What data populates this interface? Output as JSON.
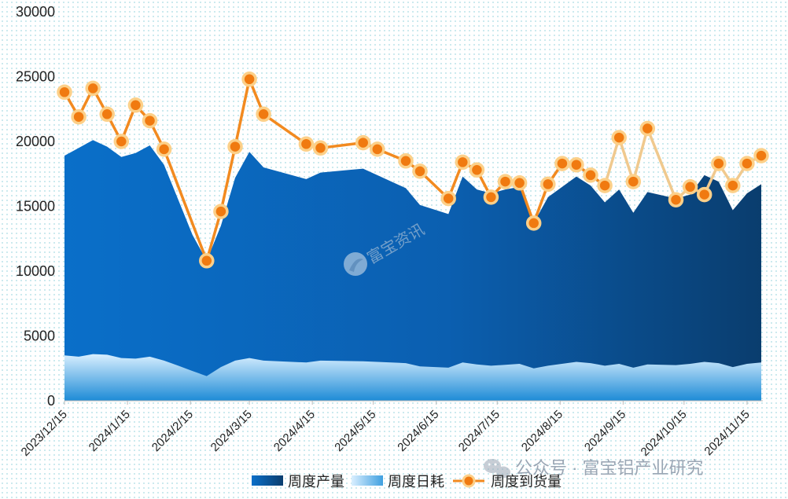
{
  "chart_data": {
    "type": "area",
    "ylim": [
      0,
      30000
    ],
    "yticks": [
      0,
      5000,
      10000,
      15000,
      20000,
      25000,
      30000
    ],
    "xtick_labels": [
      "2023/12/15",
      "2024/1/15",
      "2024/2/15",
      "2024/3/15",
      "2024/4/15",
      "2024/5/15",
      "2024/6/15",
      "2024/7/15",
      "2024/8/15",
      "2024/9/15",
      "2024/10/15",
      "2024/11/15"
    ],
    "grid": true,
    "legend_position": "bottom",
    "series": [
      {
        "name": "周度产量",
        "kind": "area",
        "color": "#0a6cc4",
        "points": [
          [
            "2023-12-15",
            18900
          ],
          [
            "2023-12-22",
            19500
          ],
          [
            "2023-12-29",
            20100
          ],
          [
            "2024-01-05",
            19600
          ],
          [
            "2024-01-12",
            18800
          ],
          [
            "2024-01-19",
            19100
          ],
          [
            "2024-01-26",
            19700
          ],
          [
            "2024-02-02",
            18200
          ],
          [
            "2024-02-09",
            15500
          ],
          [
            "2024-02-16",
            12800
          ],
          [
            "2024-02-23",
            10800
          ],
          [
            "2024-03-01",
            13500
          ],
          [
            "2024-03-08",
            17200
          ],
          [
            "2024-03-15",
            19200
          ],
          [
            "2024-03-22",
            18000
          ],
          [
            "2024-04-12",
            17100
          ],
          [
            "2024-04-19",
            17600
          ],
          [
            "2024-05-03",
            17800
          ],
          [
            "2024-05-10",
            17900
          ],
          [
            "2024-05-17",
            17400
          ],
          [
            "2024-05-31",
            16400
          ],
          [
            "2024-06-07",
            15100
          ],
          [
            "2024-06-21",
            14400
          ],
          [
            "2024-06-28",
            17300
          ],
          [
            "2024-07-05",
            16300
          ],
          [
            "2024-07-12",
            16000
          ],
          [
            "2024-07-19",
            16300
          ],
          [
            "2024-07-26",
            16500
          ],
          [
            "2024-08-02",
            13700
          ],
          [
            "2024-08-09",
            15700
          ],
          [
            "2024-08-16",
            16500
          ],
          [
            "2024-08-23",
            17300
          ],
          [
            "2024-08-30",
            16600
          ],
          [
            "2024-09-06",
            15300
          ],
          [
            "2024-09-13",
            16300
          ],
          [
            "2024-09-20",
            14500
          ],
          [
            "2024-09-27",
            16100
          ],
          [
            "2024-10-11",
            15600
          ],
          [
            "2024-10-18",
            15900
          ],
          [
            "2024-10-25",
            17400
          ],
          [
            "2024-11-01",
            16900
          ],
          [
            "2024-11-08",
            14700
          ],
          [
            "2024-11-15",
            16000
          ],
          [
            "2024-11-22",
            16700
          ]
        ]
      },
      {
        "name": "周度日耗",
        "kind": "area",
        "color": "#7cc3f2",
        "points": [
          [
            "2023-12-15",
            3500
          ],
          [
            "2023-12-22",
            3400
          ],
          [
            "2023-12-29",
            3600
          ],
          [
            "2024-01-05",
            3550
          ],
          [
            "2024-01-12",
            3300
          ],
          [
            "2024-01-19",
            3250
          ],
          [
            "2024-01-26",
            3400
          ],
          [
            "2024-02-02",
            3100
          ],
          [
            "2024-02-09",
            2700
          ],
          [
            "2024-02-16",
            2300
          ],
          [
            "2024-02-23",
            1900
          ],
          [
            "2024-03-01",
            2600
          ],
          [
            "2024-03-08",
            3100
          ],
          [
            "2024-03-15",
            3300
          ],
          [
            "2024-03-22",
            3100
          ],
          [
            "2024-04-12",
            2950
          ],
          [
            "2024-04-19",
            3100
          ],
          [
            "2024-05-10",
            3050
          ],
          [
            "2024-05-31",
            2900
          ],
          [
            "2024-06-07",
            2650
          ],
          [
            "2024-06-21",
            2550
          ],
          [
            "2024-06-28",
            2950
          ],
          [
            "2024-07-05",
            2800
          ],
          [
            "2024-07-12",
            2700
          ],
          [
            "2024-07-26",
            2850
          ],
          [
            "2024-08-02",
            2500
          ],
          [
            "2024-08-09",
            2700
          ],
          [
            "2024-08-23",
            3000
          ],
          [
            "2024-08-30",
            2900
          ],
          [
            "2024-09-06",
            2700
          ],
          [
            "2024-09-13",
            2850
          ],
          [
            "2024-09-20",
            2550
          ],
          [
            "2024-09-27",
            2800
          ],
          [
            "2024-10-11",
            2750
          ],
          [
            "2024-10-18",
            2850
          ],
          [
            "2024-10-25",
            3000
          ],
          [
            "2024-11-01",
            2900
          ],
          [
            "2024-11-08",
            2600
          ],
          [
            "2024-11-15",
            2850
          ],
          [
            "2024-11-22",
            2950
          ]
        ]
      },
      {
        "name": "周度到货量",
        "kind": "line",
        "color": "#f28a20",
        "color_late": "#f0c98e",
        "points": [
          [
            "2023-12-15",
            23800
          ],
          [
            "2023-12-22",
            21900
          ],
          [
            "2023-12-29",
            24100
          ],
          [
            "2024-01-05",
            22100
          ],
          [
            "2024-01-12",
            20000
          ],
          [
            "2024-01-19",
            22800
          ],
          [
            "2024-01-26",
            21600
          ],
          [
            "2024-02-02",
            19400
          ],
          [
            "2024-02-23",
            10800
          ],
          [
            "2024-03-01",
            14600
          ],
          [
            "2024-03-08",
            19600
          ],
          [
            "2024-03-15",
            24800
          ],
          [
            "2024-03-22",
            22100
          ],
          [
            "2024-04-12",
            19800
          ],
          [
            "2024-04-19",
            19500
          ],
          [
            "2024-05-10",
            19900
          ],
          [
            "2024-05-17",
            19400
          ],
          [
            "2024-05-31",
            18500
          ],
          [
            "2024-06-07",
            17700
          ],
          [
            "2024-06-21",
            15600
          ],
          [
            "2024-06-28",
            18400
          ],
          [
            "2024-07-05",
            17800
          ],
          [
            "2024-07-12",
            15700
          ],
          [
            "2024-07-19",
            16900
          ],
          [
            "2024-07-26",
            16800
          ],
          [
            "2024-08-02",
            13700
          ],
          [
            "2024-08-09",
            16700
          ],
          [
            "2024-08-16",
            18300
          ],
          [
            "2024-08-23",
            18200
          ],
          [
            "2024-08-30",
            17400
          ],
          [
            "2024-09-06",
            16600
          ],
          [
            "2024-09-13",
            20300
          ],
          [
            "2024-09-20",
            16900
          ],
          [
            "2024-09-27",
            21000
          ],
          [
            "2024-10-11",
            15500
          ],
          [
            "2024-10-18",
            16500
          ],
          [
            "2024-10-25",
            15900
          ],
          [
            "2024-11-01",
            18300
          ],
          [
            "2024-11-08",
            16600
          ],
          [
            "2024-11-15",
            18300
          ],
          [
            "2024-11-22",
            18900
          ]
        ]
      }
    ]
  },
  "legend": [
    {
      "label": "周度产量",
      "kind": "area-dark"
    },
    {
      "label": "周度日耗",
      "kind": "area-light"
    },
    {
      "label": "周度到货量",
      "kind": "line-marker"
    }
  ],
  "watermarks": {
    "center": "富宝资讯",
    "corner": "公众号 · 富宝铝产业研究"
  }
}
